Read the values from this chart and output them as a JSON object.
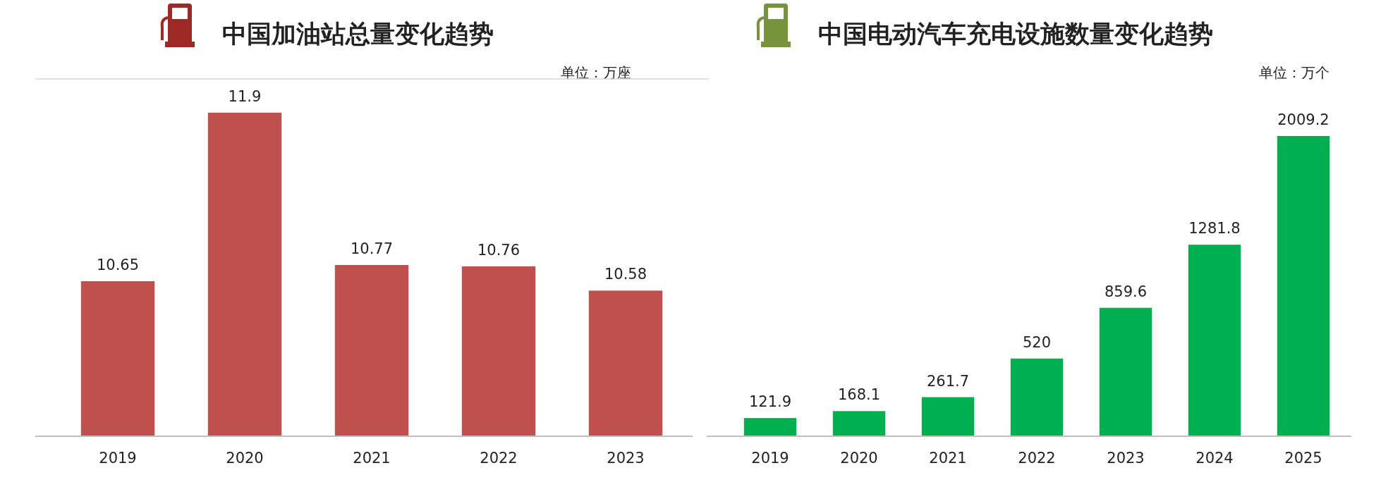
{
  "chart_data": [
    {
      "type": "bar",
      "title": "中国加油站总量变化趋势",
      "annotations": [
        "单位：万座"
      ],
      "categories": [
        "2019",
        "2020",
        "2021",
        "2022",
        "2023"
      ],
      "values": [
        10.65,
        11.9,
        10.77,
        10.76,
        10.58
      ],
      "color": "#c0504d",
      "ylim": [
        9.5,
        12.15
      ],
      "data_labels": true
    },
    {
      "type": "bar",
      "title": "中国电动汽车充电设施数量变化趋势",
      "annotations": [
        "单位：万个"
      ],
      "categories": [
        "2019",
        "2020",
        "2021",
        "2022",
        "2023",
        "2024",
        "2025"
      ],
      "values": [
        121.9,
        168.1,
        261.7,
        520,
        859.6,
        1281.8,
        2009.2
      ],
      "color": "#00b050",
      "data_labels": true
    }
  ]
}
